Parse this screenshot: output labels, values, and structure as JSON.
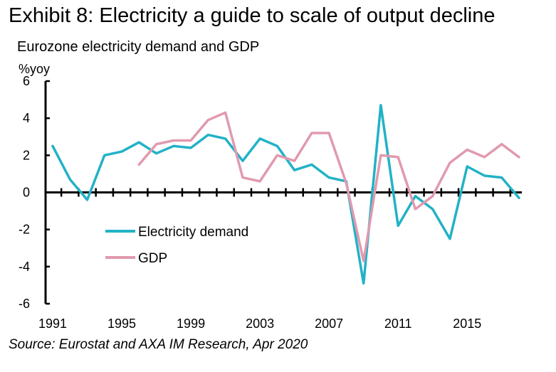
{
  "chart_data": {
    "type": "line",
    "title": "Exhibit 8: Electricity a guide to scale of output decline",
    "subtitle": "Eurozone electricity demand and GDP",
    "ylabel": "%yoy",
    "xlabel": "",
    "ylim": [
      -6,
      6
    ],
    "y_ticks": [
      6,
      4,
      2,
      0,
      -2,
      -4,
      -6
    ],
    "xlim": [
      1991,
      2018
    ],
    "x_tick_labels": [
      "1991",
      "1995",
      "1999",
      "2003",
      "2007",
      "2011",
      "2015"
    ],
    "legend_position": "lower-left",
    "series": [
      {
        "name": "Electricity demand",
        "color": "#22B2C6",
        "x": [
          1991,
          1992,
          1993,
          1994,
          1995,
          1996,
          1997,
          1998,
          1999,
          2000,
          2001,
          2002,
          2003,
          2004,
          2005,
          2006,
          2007,
          2008,
          2009,
          2010,
          2011,
          2012,
          2013,
          2014,
          2015,
          2016,
          2017,
          2018
        ],
        "values": [
          2.5,
          0.7,
          -0.4,
          2.0,
          2.2,
          2.7,
          2.1,
          2.5,
          2.4,
          3.1,
          2.9,
          1.7,
          2.9,
          2.5,
          1.2,
          1.5,
          0.8,
          0.6,
          -4.9,
          4.7,
          -1.8,
          -0.2,
          -0.9,
          -2.5,
          1.4,
          0.9,
          0.8,
          -0.3
        ]
      },
      {
        "name": "GDP",
        "color": "#E09AAE",
        "x": [
          1996,
          1997,
          1998,
          1999,
          2000,
          2001,
          2002,
          2003,
          2004,
          2005,
          2006,
          2007,
          2008,
          2009,
          2010,
          2011,
          2012,
          2013,
          2014,
          2015,
          2016,
          2017,
          2018
        ],
        "values": [
          1.5,
          2.6,
          2.8,
          2.8,
          3.9,
          4.3,
          0.8,
          0.6,
          2.0,
          1.7,
          3.2,
          3.2,
          0.5,
          -3.7,
          2.0,
          1.9,
          -0.9,
          -0.2,
          1.6,
          2.3,
          1.9,
          2.6,
          1.9
        ]
      }
    ],
    "source": "Source: Eurostat and AXA IM Research, Apr 2020"
  }
}
